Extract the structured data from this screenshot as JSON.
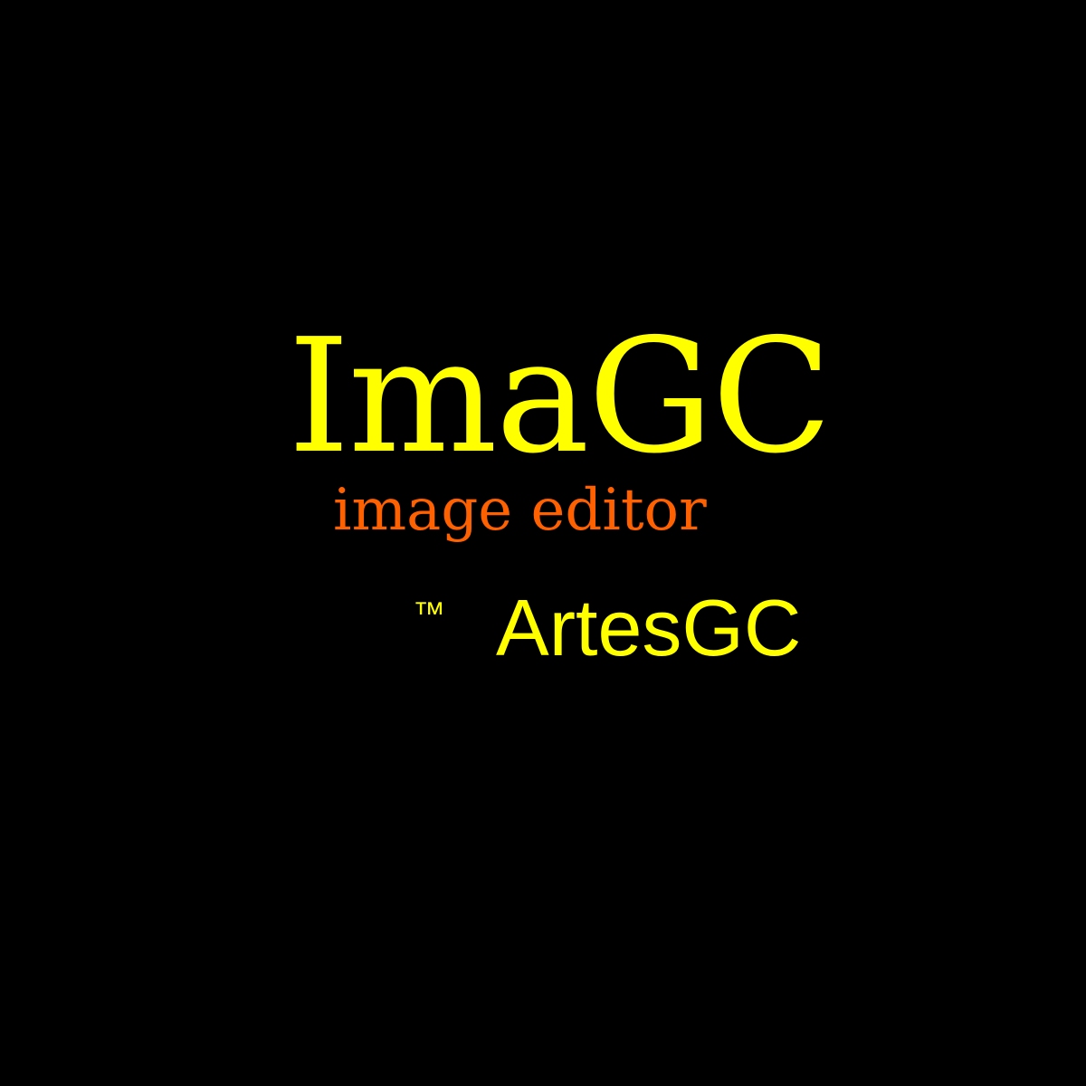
{
  "splash": {
    "app_name": "ImaGC",
    "subtitle": "image editor",
    "trademark": "™",
    "company": "ArtesGC"
  },
  "colors": {
    "background": "#000000",
    "app_name": "#ffff00",
    "subtitle": "#ff6000",
    "company": "#ffff00"
  }
}
